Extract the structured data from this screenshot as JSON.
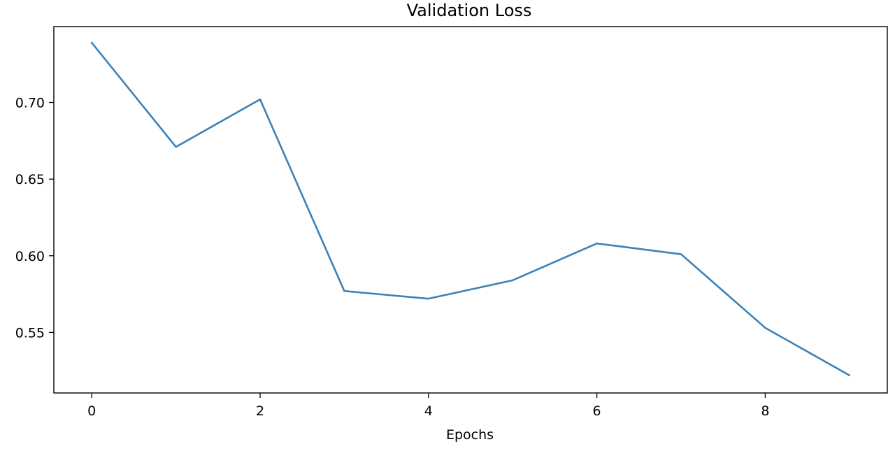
{
  "chart_data": {
    "type": "line",
    "title": "Validation Loss",
    "xlabel": "Epochs",
    "ylabel": "",
    "x": [
      0,
      1,
      2,
      3,
      4,
      5,
      6,
      7,
      8,
      9
    ],
    "series": [
      {
        "name": "Validation Loss",
        "values": [
          0.739,
          0.671,
          0.702,
          0.577,
          0.572,
          0.584,
          0.608,
          0.601,
          0.553,
          0.522
        ]
      }
    ],
    "xlim": [
      -0.45,
      9.45
    ],
    "ylim": [
      0.5105,
      0.7495
    ],
    "xticks": [
      0,
      2,
      4,
      6,
      8
    ],
    "xtick_labels": [
      "0",
      "2",
      "4",
      "6",
      "8"
    ],
    "yticks": [
      0.55,
      0.6,
      0.65,
      0.7
    ],
    "ytick_labels": [
      "0.55",
      "0.60",
      "0.65",
      "0.70"
    ],
    "grid": false,
    "line_color": "#3b82b8"
  }
}
